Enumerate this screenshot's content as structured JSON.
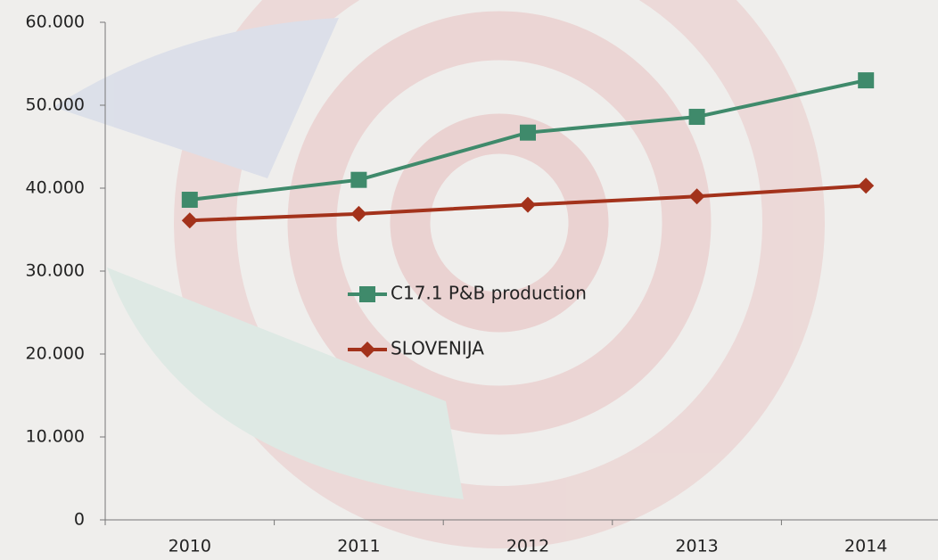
{
  "chart_data": {
    "type": "line",
    "categories": [
      "2010",
      "2011",
      "2012",
      "2013",
      "2014"
    ],
    "series": [
      {
        "name": "C17.1 P&B production",
        "color": "#3f8a6b",
        "marker": "square",
        "values": [
          38600,
          41000,
          46700,
          48600,
          53000
        ]
      },
      {
        "name": "SLOVENIJA",
        "color": "#a3321b",
        "marker": "diamond",
        "values": [
          36100,
          36900,
          38000,
          39000,
          40300
        ]
      }
    ],
    "ylim": [
      0,
      60000
    ],
    "yticks": [
      0,
      {
        "value": 10000,
        "label": "10.000"
      },
      {
        "value": 20000,
        "label": "20.000"
      },
      {
        "value": 30000,
        "label": "30.000"
      },
      {
        "value": 40000,
        "label": "40.000"
      },
      {
        "value": 50000,
        "label": "50.000"
      },
      {
        "value": 60000,
        "label": "60.000"
      }
    ],
    "grid": false,
    "legend": "center"
  }
}
